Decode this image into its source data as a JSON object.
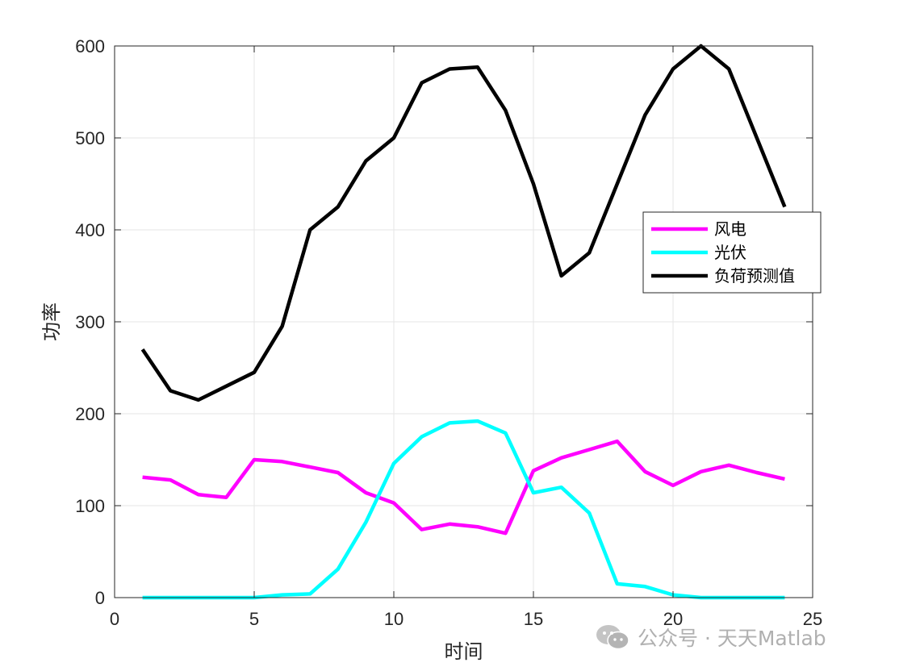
{
  "chart_data": {
    "type": "line",
    "title": "",
    "xlabel": "时间",
    "ylabel": "功率",
    "xlim": [
      0,
      25
    ],
    "ylim": [
      0,
      600
    ],
    "xticks": [
      0,
      5,
      10,
      15,
      20,
      25
    ],
    "yticks": [
      0,
      100,
      200,
      300,
      400,
      500,
      600
    ],
    "grid": true,
    "legend_position": "right",
    "x": [
      1,
      2,
      3,
      4,
      5,
      6,
      7,
      8,
      9,
      10,
      11,
      12,
      13,
      14,
      15,
      16,
      17,
      18,
      19,
      20,
      21,
      22,
      23,
      24
    ],
    "series": [
      {
        "name": "风电",
        "color": "#ff00ff",
        "values": [
          131,
          128,
          112,
          109,
          150,
          148,
          142,
          136,
          114,
          103,
          74,
          80,
          77,
          70,
          138,
          152,
          161,
          170,
          137,
          122,
          137,
          144,
          136,
          129
        ]
      },
      {
        "name": "光伏",
        "color": "#00ffff",
        "values": [
          0,
          0,
          0,
          0,
          0,
          3,
          4,
          31,
          82,
          146,
          175,
          190,
          192,
          179,
          114,
          120,
          92,
          15,
          12,
          3,
          0,
          0,
          0,
          0
        ]
      },
      {
        "name": "负荷预测值",
        "color": "#000000",
        "values": [
          270,
          225,
          215,
          230,
          245,
          295,
          400,
          425,
          475,
          500,
          560,
          575,
          577,
          530,
          450,
          350,
          375,
          450,
          525,
          575,
          600,
          575,
          500,
          425
        ]
      }
    ]
  },
  "watermark": {
    "text": "公众号 · 天天Matlab",
    "icon": "wechat-icon"
  }
}
